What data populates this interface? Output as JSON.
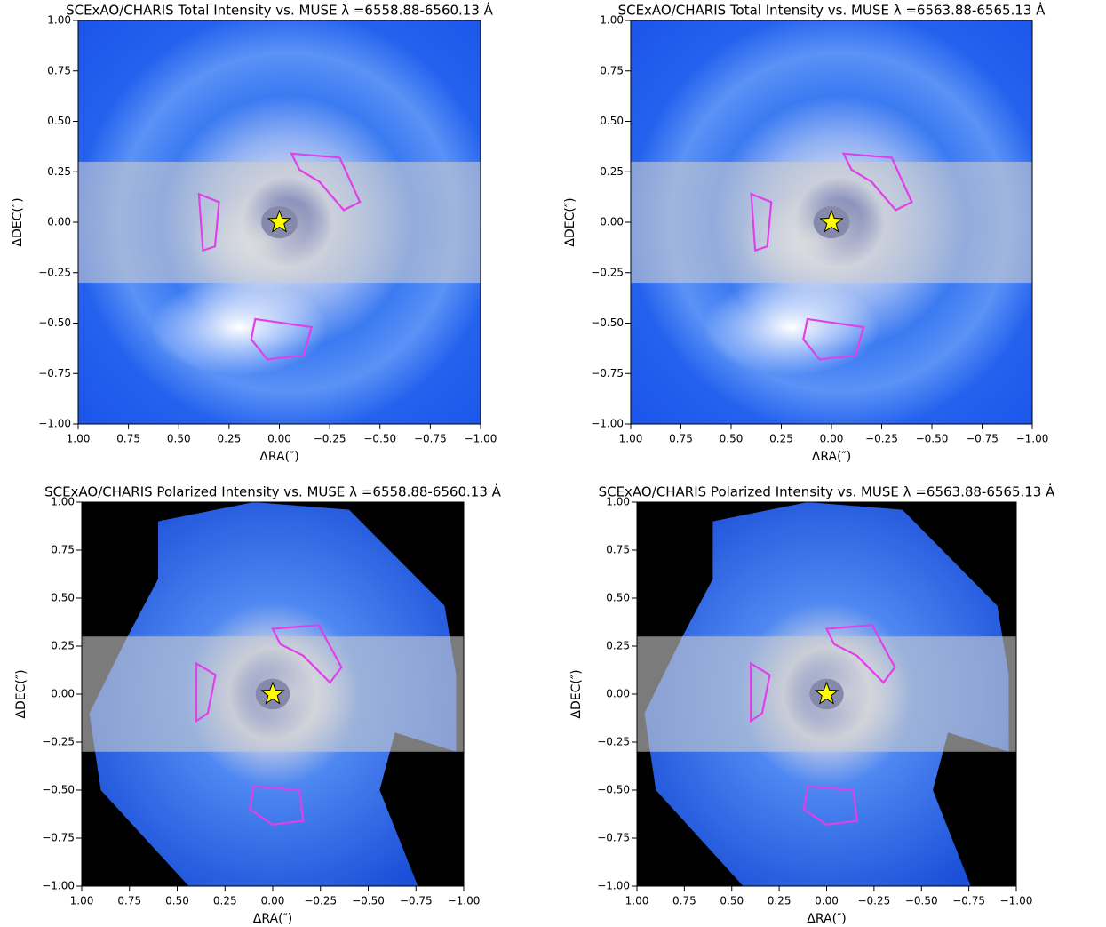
{
  "chart_data": [
    {
      "type": "image",
      "title": "SCExAO/CHARIS Total Intensity vs. MUSE λ =6558.88-6560.13 Ȧ",
      "xlabel": "ΔRA(″)",
      "ylabel": "ΔDEC(″)",
      "xlim": [
        1,
        -1
      ],
      "ylim": [
        -1,
        1
      ],
      "xticks": [
        {
          "value": 1,
          "label": "1.00"
        },
        {
          "value": 0.75,
          "label": "0.75"
        },
        {
          "value": 0.5,
          "label": "0.50"
        },
        {
          "value": 0.25,
          "label": "0.25"
        },
        {
          "value": 0,
          "label": "0.00"
        },
        {
          "value": -0.25,
          "label": "−0.25"
        },
        {
          "value": -0.5,
          "label": "−0.50"
        },
        {
          "value": -0.75,
          "label": "−0.75"
        },
        {
          "value": -1,
          "label": "−1.00"
        }
      ],
      "yticks": [
        {
          "value": 1,
          "label": "1.00"
        },
        {
          "value": 0.75,
          "label": "0.75"
        },
        {
          "value": 0.5,
          "label": "0.50"
        },
        {
          "value": 0.25,
          "label": "0.25"
        },
        {
          "value": 0,
          "label": "0.00"
        },
        {
          "value": -0.25,
          "label": "−0.25"
        },
        {
          "value": -0.5,
          "label": "−0.50"
        },
        {
          "value": -0.75,
          "label": "−0.75"
        },
        {
          "value": -1,
          "label": "−1.00"
        }
      ],
      "band": [
        -0.3,
        0.3
      ],
      "star": {
        "x": 0,
        "y": 0,
        "color": "#ffff00"
      },
      "contour_color": "#e040e8"
    },
    {
      "type": "image",
      "title": "SCExAO/CHARIS Total Intensity vs. MUSE λ =6563.88-6565.13 Ȧ",
      "xlabel": "ΔRA(″)",
      "ylabel": "ΔDEC(″)",
      "xlim": [
        1,
        -1
      ],
      "ylim": [
        -1,
        1
      ],
      "xticks": [
        {
          "value": 1,
          "label": "1.00"
        },
        {
          "value": 0.75,
          "label": "0.75"
        },
        {
          "value": 0.5,
          "label": "0.50"
        },
        {
          "value": 0.25,
          "label": "0.25"
        },
        {
          "value": 0,
          "label": "0.00"
        },
        {
          "value": -0.25,
          "label": "−0.25"
        },
        {
          "value": -0.5,
          "label": "−0.50"
        },
        {
          "value": -0.75,
          "label": "−0.75"
        },
        {
          "value": -1,
          "label": "−1.00"
        }
      ],
      "yticks": [
        {
          "value": 1,
          "label": "1.00"
        },
        {
          "value": 0.75,
          "label": "0.75"
        },
        {
          "value": 0.5,
          "label": "0.50"
        },
        {
          "value": 0.25,
          "label": "0.25"
        },
        {
          "value": 0,
          "label": "0.00"
        },
        {
          "value": -0.25,
          "label": "−0.25"
        },
        {
          "value": -0.5,
          "label": "−0.50"
        },
        {
          "value": -0.75,
          "label": "−0.75"
        },
        {
          "value": -1,
          "label": "−1.00"
        }
      ],
      "band": [
        -0.3,
        0.3
      ],
      "star": {
        "x": 0,
        "y": 0,
        "color": "#ffff00"
      },
      "contour_color": "#e040e8"
    },
    {
      "type": "image",
      "title": "SCExAO/CHARIS Polarized Intensity vs. MUSE λ =6558.88-6560.13 Ȧ",
      "xlabel": "ΔRA(″)",
      "ylabel": "ΔDEC(″)",
      "xlim": [
        1,
        -1
      ],
      "ylim": [
        -1,
        1
      ],
      "xticks": [
        {
          "value": 1,
          "label": "1.00"
        },
        {
          "value": 0.75,
          "label": "0.75"
        },
        {
          "value": 0.5,
          "label": "0.50"
        },
        {
          "value": 0.25,
          "label": "0.25"
        },
        {
          "value": 0,
          "label": "0.00"
        },
        {
          "value": -0.25,
          "label": "−0.25"
        },
        {
          "value": -0.5,
          "label": "−0.50"
        },
        {
          "value": -0.75,
          "label": "−0.75"
        },
        {
          "value": -1,
          "label": "−1.00"
        }
      ],
      "yticks": [
        {
          "value": 1,
          "label": "1.00"
        },
        {
          "value": 0.75,
          "label": "0.75"
        },
        {
          "value": 0.5,
          "label": "0.50"
        },
        {
          "value": 0.25,
          "label": "0.25"
        },
        {
          "value": 0,
          "label": "0.00"
        },
        {
          "value": -0.25,
          "label": "−0.25"
        },
        {
          "value": -0.5,
          "label": "−0.50"
        },
        {
          "value": -0.75,
          "label": "−0.75"
        },
        {
          "value": -1,
          "label": "−1.00"
        }
      ],
      "band": [
        -0.3,
        0.3
      ],
      "star": {
        "x": 0,
        "y": 0,
        "color": "#ffff00"
      },
      "contour_color": "#e040e8"
    },
    {
      "type": "image",
      "title": "SCExAO/CHARIS Polarized Intensity vs. MUSE λ =6563.88-6565.13 Ȧ",
      "xlabel": "ΔRA(″)",
      "ylabel": "ΔDEC(″)",
      "xlim": [
        1,
        -1
      ],
      "ylim": [
        -1,
        1
      ],
      "xticks": [
        {
          "value": 1,
          "label": "1.00"
        },
        {
          "value": 0.75,
          "label": "0.75"
        },
        {
          "value": 0.5,
          "label": "0.50"
        },
        {
          "value": 0.25,
          "label": "0.25"
        },
        {
          "value": 0,
          "label": "0.00"
        },
        {
          "value": -0.25,
          "label": "−0.25"
        },
        {
          "value": -0.5,
          "label": "−0.50"
        },
        {
          "value": -0.75,
          "label": "−0.75"
        },
        {
          "value": -1,
          "label": "−1.00"
        }
      ],
      "yticks": [
        {
          "value": 1,
          "label": "1.00"
        },
        {
          "value": 0.75,
          "label": "0.75"
        },
        {
          "value": 0.5,
          "label": "0.50"
        },
        {
          "value": 0.25,
          "label": "0.25"
        },
        {
          "value": 0,
          "label": "0.00"
        },
        {
          "value": -0.25,
          "label": "−0.25"
        },
        {
          "value": -0.5,
          "label": "−0.50"
        },
        {
          "value": -0.75,
          "label": "−0.75"
        },
        {
          "value": -1,
          "label": "−1.00"
        }
      ],
      "band": [
        -0.3,
        0.3
      ],
      "star": {
        "x": 0,
        "y": 0,
        "color": "#ffff00"
      },
      "contour_color": "#e040e8"
    }
  ]
}
